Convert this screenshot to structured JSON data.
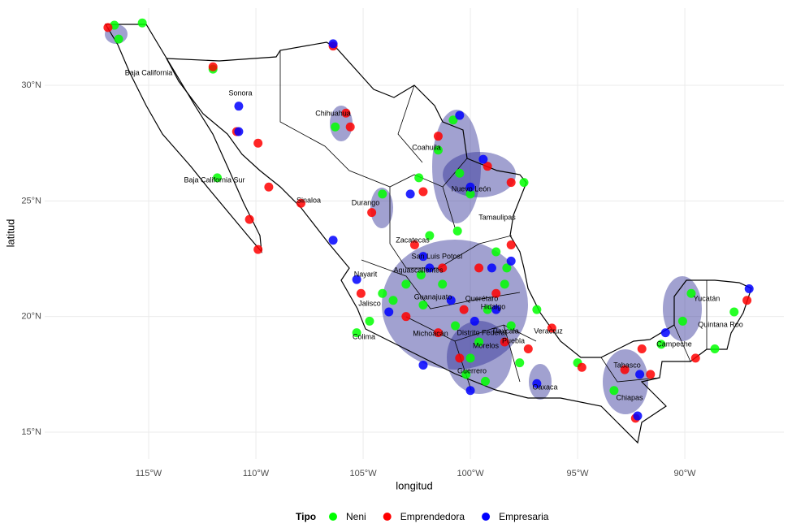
{
  "chart_data": {
    "type": "scatter",
    "xlabel": "longitud",
    "ylabel": "latitud",
    "xlim": [
      -119.85,
      -85.38
    ],
    "ylim": [
      13.84,
      33.34
    ],
    "xticks": [
      {
        "value": -115,
        "label": "115°W"
      },
      {
        "value": -110,
        "label": "110°W"
      },
      {
        "value": -105,
        "label": "105°W"
      },
      {
        "value": -100,
        "label": "100°W"
      },
      {
        "value": -95,
        "label": "95°W"
      },
      {
        "value": -90,
        "label": "90°W"
      }
    ],
    "yticks": [
      {
        "value": 15,
        "label": "15°N"
      },
      {
        "value": 20,
        "label": "20°N"
      },
      {
        "value": 25,
        "label": "25°N"
      },
      {
        "value": 30,
        "label": "30°N"
      }
    ],
    "grid": true,
    "legend": "bottom",
    "legend_title": "Tipo",
    "annotations": [
      "Baja California",
      "Sonora",
      "Chihuahua",
      "Coahuila",
      "Nuevo León",
      "Tamaulipas",
      "Baja California Sur",
      "Durango",
      "Sinaloa",
      "Zacatecas",
      "San Luis Potosí",
      "Aguascalientes",
      "Nayarit",
      "Guanajuato",
      "Querétaro",
      "Hidalgo",
      "Jalisco",
      "Colima",
      "Michoacán",
      "Distrito Federal",
      "Tlaxcala",
      "Puebla",
      "Morelos",
      "Veracruz",
      "Guerrero",
      "Oaxaca",
      "Tabasco",
      "Chiapas",
      "Campeche",
      "Yucatán",
      "Quintana Roo"
    ],
    "series": [
      {
        "name": "Neni",
        "color": "#00ff00",
        "x": [
          -116.6,
          -116.4,
          -115.3,
          -112.0,
          -111.8,
          -104.1,
          -106.3,
          -100.8,
          -100.5,
          -100.0,
          -101.5,
          -102.4,
          -100.6,
          -101.9,
          -102.3,
          -104.1,
          -103.0,
          -101.3,
          -100.7,
          -99.6,
          -99.2,
          -98.4,
          -98.3,
          -98.8,
          -99.3,
          -100.2,
          -97.7,
          -96.9,
          -95.0,
          -93.3,
          -91.1,
          -89.7,
          -90.1,
          -87.7,
          -88.6,
          -105.3,
          -104.7,
          -103.6,
          -102.2,
          -100.0,
          -98.1,
          -97.5
        ],
        "values": [
          32.6,
          32.0,
          32.7,
          30.7,
          26.0,
          25.3,
          28.2,
          28.5,
          26.2,
          25.3,
          27.2,
          26.0,
          23.7,
          23.5,
          21.8,
          21.0,
          21.4,
          21.4,
          19.6,
          18.9,
          20.3,
          21.4,
          22.1,
          22.8,
          17.2,
          17.5,
          18.0,
          20.3,
          18.0,
          16.8,
          18.8,
          21.0,
          19.8,
          20.2,
          18.6,
          19.3,
          19.8,
          20.7,
          20.5,
          18.2,
          19.6,
          25.8
        ]
      },
      {
        "name": "Emprendedora",
        "color": "#ff0000",
        "x": [
          -116.9,
          -112.0,
          -109.9,
          -110.9,
          -110.3,
          -109.9,
          -106.4,
          -105.6,
          -105.8,
          -104.6,
          -101.5,
          -99.2,
          -98.1,
          -102.2,
          -102.6,
          -101.3,
          -103.0,
          -101.5,
          -100.3,
          -98.8,
          -98.4,
          -97.3,
          -96.2,
          -94.8,
          -92.8,
          -92.0,
          -89.5,
          -87.1,
          -109.4,
          -107.9,
          -105.1,
          -99.6,
          -98.1,
          -100.5,
          -91.6,
          -92.3
        ],
        "values": [
          32.5,
          30.8,
          27.5,
          28.0,
          24.2,
          22.9,
          31.7,
          28.2,
          28.8,
          24.5,
          27.8,
          26.5,
          25.8,
          25.4,
          23.1,
          22.1,
          20.0,
          19.3,
          20.3,
          21.0,
          18.9,
          18.6,
          19.5,
          17.8,
          17.7,
          18.6,
          18.2,
          20.7,
          25.6,
          24.9,
          21.0,
          22.1,
          23.1,
          18.2,
          17.5,
          15.6
        ]
      },
      {
        "name": "Empresaria",
        "color": "#0000ff",
        "x": [
          -106.4,
          -110.8,
          -110.8,
          -106.4,
          -105.3,
          -103.8,
          -101.9,
          -100.5,
          -100.0,
          -99.4,
          -102.2,
          -100.9,
          -99.8,
          -98.8,
          -100.0,
          -102.2,
          -96.9,
          -92.2,
          -90.9,
          -87.0,
          -92.1,
          -102.8,
          -99.0,
          -98.1
        ],
        "values": [
          31.8,
          28.0,
          29.1,
          23.3,
          21.6,
          20.2,
          22.1,
          28.7,
          25.6,
          26.8,
          22.6,
          20.7,
          19.8,
          20.3,
          16.8,
          17.9,
          17.1,
          15.7,
          19.3,
          21.2,
          17.5,
          25.3,
          22.1,
          22.4
        ]
      }
    ]
  }
}
